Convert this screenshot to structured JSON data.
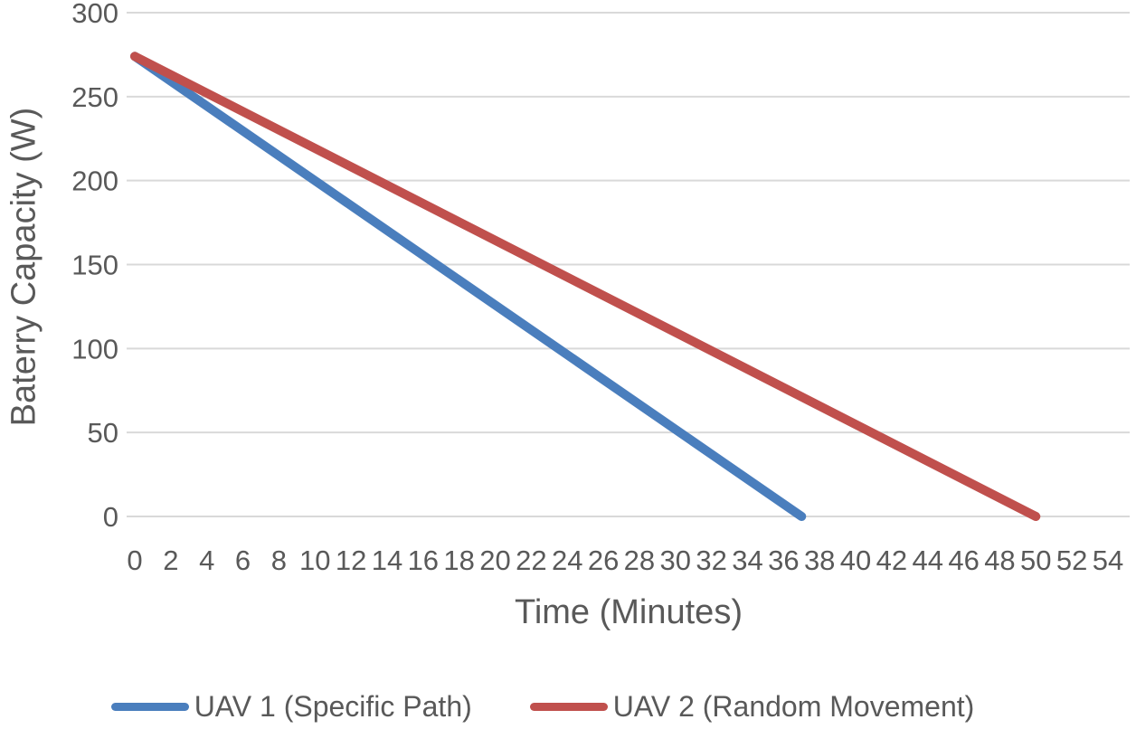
{
  "page": {
    "background": "#FFFFFF"
  },
  "chart_data": {
    "type": "line",
    "title": "",
    "xlabel": "Time (Minutes)",
    "ylabel": "Baterry Capacity (W)",
    "xlim": [
      0,
      54
    ],
    "ylim": [
      0,
      300
    ],
    "x_ticks": [
      0,
      2,
      4,
      6,
      8,
      10,
      12,
      14,
      16,
      18,
      20,
      22,
      24,
      26,
      28,
      30,
      32,
      34,
      36,
      38,
      40,
      42,
      44,
      46,
      48,
      50,
      52,
      54
    ],
    "y_ticks": [
      0,
      50,
      100,
      150,
      200,
      250,
      300
    ],
    "grid": "horizontal-only",
    "grid_color": "#D9D9D9",
    "text_color": "#595959",
    "legend_position": "bottom-center",
    "line_width": 10,
    "series": [
      {
        "name": "UAV 1 (Specific Path)",
        "color": "#4A7EBD",
        "points": [
          [
            0,
            274
          ],
          [
            37,
            0
          ]
        ]
      },
      {
        "name": "UAV 2 (Random Movement)",
        "color": "#C0504D",
        "points": [
          [
            0,
            274
          ],
          [
            50,
            0
          ]
        ]
      }
    ]
  }
}
